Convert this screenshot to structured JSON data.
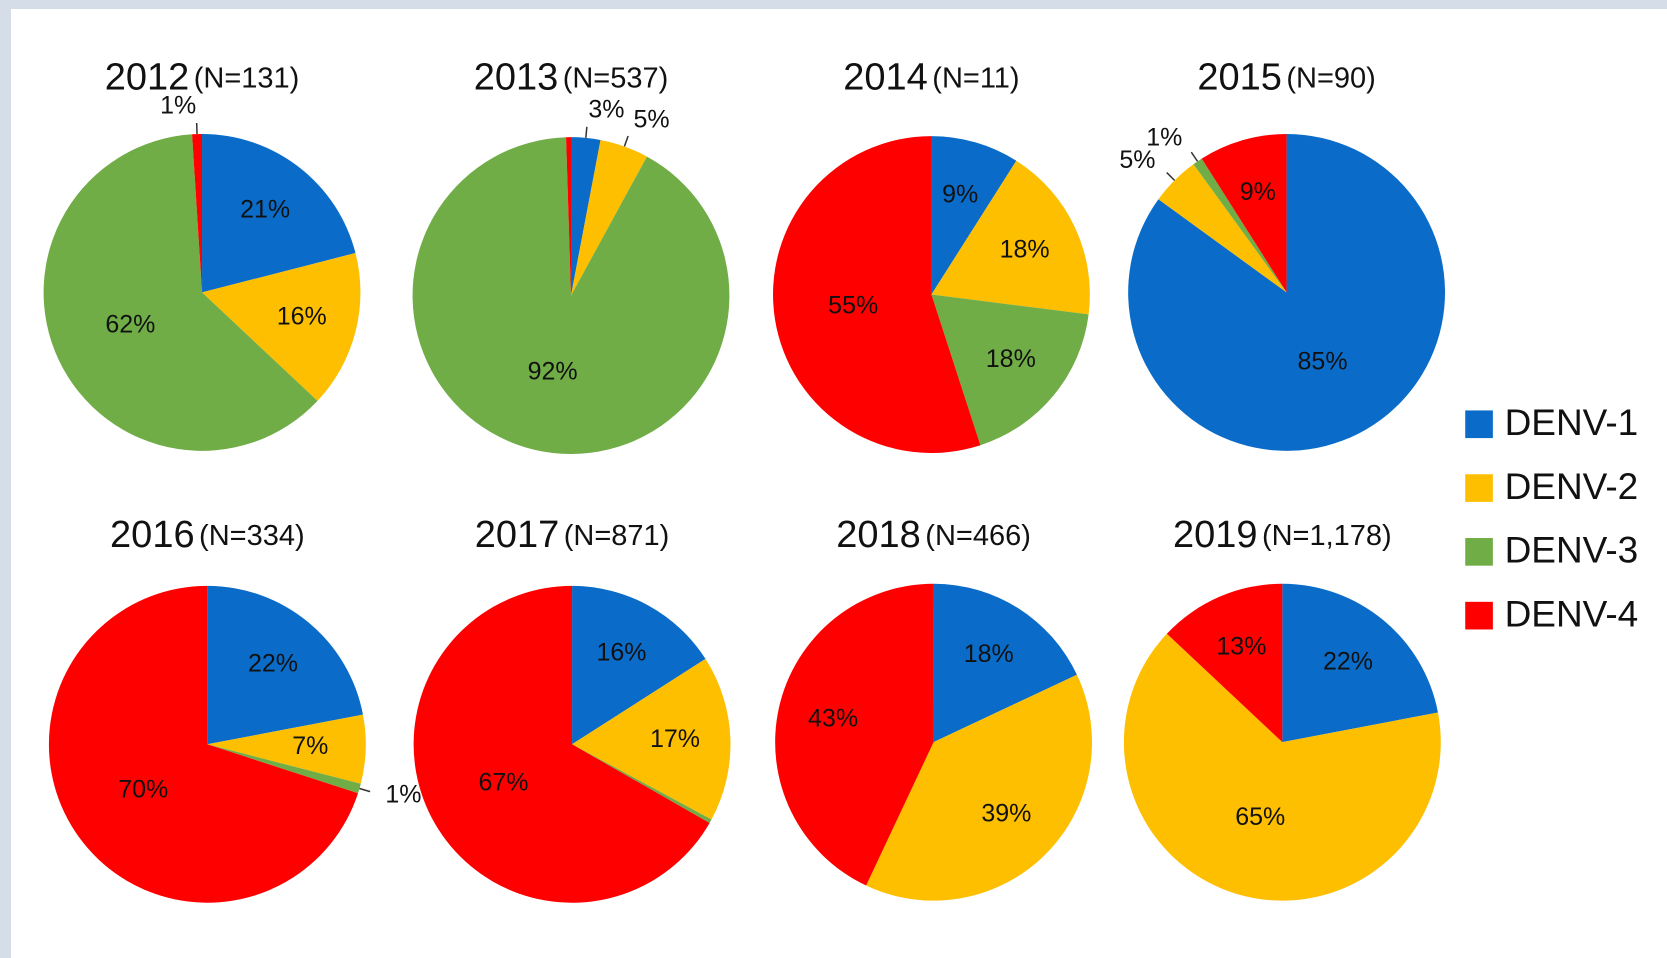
{
  "chart_data": [
    {
      "type": "pie",
      "title": "2012",
      "subtitle": "(N=131)",
      "categories": [
        "DENV-1",
        "DENV-2",
        "DENV-3",
        "DENV-4"
      ],
      "values": [
        21,
        16,
        62,
        1
      ],
      "value_labels": [
        "21%",
        "16%",
        "62%",
        "1%"
      ],
      "colors": [
        "#0a6cc8",
        "#fdbf00",
        "#70ad47",
        "#fe0000"
      ]
    },
    {
      "type": "pie",
      "title": "2013",
      "subtitle": "(N=537)",
      "categories": [
        "DENV-1",
        "DENV-2",
        "DENV-3",
        "DENV-4"
      ],
      "values": [
        3,
        5,
        92,
        0.5
      ],
      "value_labels": [
        "3%",
        "5%",
        "92%",
        null
      ],
      "colors": [
        "#0a6cc8",
        "#fdbf00",
        "#70ad47",
        "#fe0000"
      ]
    },
    {
      "type": "pie",
      "title": "2014",
      "subtitle": "(N=11)",
      "categories": [
        "DENV-1",
        "DENV-2",
        "DENV-3",
        "DENV-4"
      ],
      "values": [
        9,
        18,
        18,
        55
      ],
      "value_labels": [
        "9%",
        "18%",
        "18%",
        "55%"
      ],
      "colors": [
        "#0a6cc8",
        "#fdbf00",
        "#70ad47",
        "#fe0000"
      ]
    },
    {
      "type": "pie",
      "title": "2015",
      "subtitle": "(N=90)",
      "categories": [
        "DENV-1",
        "DENV-2",
        "DENV-3",
        "DENV-4"
      ],
      "values": [
        85,
        5,
        1,
        9
      ],
      "value_labels": [
        "85%",
        "5%",
        "1%",
        "9%"
      ],
      "colors": [
        "#0a6cc8",
        "#fdbf00",
        "#70ad47",
        "#fe0000"
      ]
    },
    {
      "type": "pie",
      "title": "2016",
      "subtitle": "(N=334)",
      "categories": [
        "DENV-1",
        "DENV-2",
        "DENV-3",
        "DENV-4"
      ],
      "values": [
        22,
        7,
        1,
        70
      ],
      "value_labels": [
        "22%",
        "7%",
        "1%",
        "70%"
      ],
      "colors": [
        "#0a6cc8",
        "#fdbf00",
        "#70ad47",
        "#fe0000"
      ]
    },
    {
      "type": "pie",
      "title": "2017",
      "subtitle": "(N=871)",
      "categories": [
        "DENV-1",
        "DENV-2",
        "DENV-3",
        "DENV-4"
      ],
      "values": [
        16,
        17,
        0.4,
        67
      ],
      "value_labels": [
        "16%",
        "17%",
        null,
        "67%"
      ],
      "colors": [
        "#0a6cc8",
        "#fdbf00",
        "#70ad47",
        "#fe0000"
      ]
    },
    {
      "type": "pie",
      "title": "2018",
      "subtitle": "(N=466)",
      "categories": [
        "DENV-1",
        "DENV-2",
        "DENV-3",
        "DENV-4"
      ],
      "values": [
        18,
        39,
        0,
        43
      ],
      "value_labels": [
        "18%",
        "39%",
        null,
        "43%"
      ],
      "colors": [
        "#0a6cc8",
        "#fdbf00",
        "#70ad47",
        "#fe0000"
      ]
    },
    {
      "type": "pie",
      "title": "2019",
      "subtitle": "(N=1,178)",
      "categories": [
        "DENV-1",
        "DENV-2",
        "DENV-3",
        "DENV-4"
      ],
      "values": [
        22,
        65,
        0,
        13
      ],
      "value_labels": [
        "22%",
        "65%",
        null,
        "13%"
      ],
      "colors": [
        "#0a6cc8",
        "#fdbf00",
        "#70ad47",
        "#fe0000"
      ]
    }
  ]
}
